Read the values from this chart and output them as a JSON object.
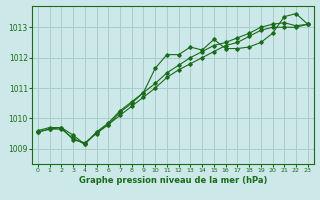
{
  "title": "Graphe pression niveau de la mer (hPa)",
  "background_color": "#cce8e8",
  "grid_color": "#aacccc",
  "line_color": "#1a6b1a",
  "xlim": [
    -0.5,
    23.5
  ],
  "ylim": [
    1008.5,
    1013.7
  ],
  "yticks": [
    1009,
    1010,
    1011,
    1012,
    1013
  ],
  "xticks": [
    0,
    1,
    2,
    3,
    4,
    5,
    6,
    7,
    8,
    9,
    10,
    11,
    12,
    13,
    14,
    15,
    16,
    17,
    18,
    19,
    20,
    21,
    22,
    23
  ],
  "series1": [
    1009.6,
    1009.7,
    1009.7,
    1009.3,
    1009.2,
    1009.5,
    1009.8,
    1010.2,
    1010.5,
    1010.85,
    1011.65,
    1012.1,
    1012.1,
    1012.35,
    1012.25,
    1012.6,
    1012.3,
    1012.3,
    1012.35,
    1012.5,
    1012.8,
    1013.35,
    1013.45,
    1013.1
  ],
  "series2": [
    1009.55,
    1009.65,
    1009.7,
    1009.45,
    1009.15,
    1009.55,
    1009.85,
    1010.25,
    1010.55,
    1010.85,
    1011.15,
    1011.5,
    1011.75,
    1012.0,
    1012.2,
    1012.4,
    1012.5,
    1012.65,
    1012.8,
    1013.0,
    1013.1,
    1013.15,
    1013.05,
    1013.1
  ],
  "series3": [
    1009.55,
    1009.65,
    1009.65,
    1009.35,
    1009.15,
    1009.55,
    1009.8,
    1010.1,
    1010.4,
    1010.7,
    1011.0,
    1011.35,
    1011.6,
    1011.8,
    1012.0,
    1012.2,
    1012.4,
    1012.5,
    1012.7,
    1012.9,
    1013.0,
    1013.0,
    1013.0,
    1013.1
  ]
}
